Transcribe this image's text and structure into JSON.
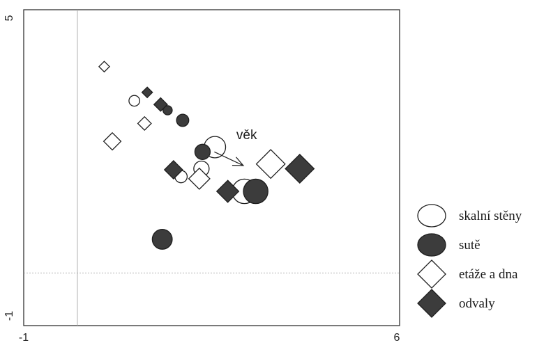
{
  "chart_data": {
    "type": "scatter",
    "xlim": [
      -1,
      6
    ],
    "ylim": [
      -1,
      5
    ],
    "x_ticks": [
      "-1",
      "6"
    ],
    "y_ticks": [
      "5",
      "-1"
    ],
    "reference_lines": {
      "x": 0,
      "y": 0
    },
    "grid": false,
    "legend_placement": "right",
    "fill_color": "#3c3c3c",
    "series": [
      {
        "name": "skalní stěny",
        "marker": "circle-open",
        "points": [
          {
            "x": 1.06,
            "y": 3.27,
            "size": 0.7
          },
          {
            "x": 1.93,
            "y": 1.83,
            "size": 0.8
          },
          {
            "x": 2.31,
            "y": 1.98,
            "size": 1.0
          },
          {
            "x": 2.56,
            "y": 2.39,
            "size": 1.4
          },
          {
            "x": 3.11,
            "y": 1.55,
            "size": 1.6
          }
        ]
      },
      {
        "name": "sutě",
        "marker": "circle-filled",
        "points": [
          {
            "x": 1.68,
            "y": 3.09,
            "size": 0.6
          },
          {
            "x": 1.96,
            "y": 2.9,
            "size": 0.8
          },
          {
            "x": 2.33,
            "y": 2.3,
            "size": 1.0
          },
          {
            "x": 3.32,
            "y": 1.55,
            "size": 1.6
          },
          {
            "x": 1.58,
            "y": 0.64,
            "size": 1.3
          }
        ]
      },
      {
        "name": "etáže a dna",
        "marker": "diamond-open",
        "points": [
          {
            "x": 0.5,
            "y": 3.92,
            "size": 0.55
          },
          {
            "x": 1.25,
            "y": 2.84,
            "size": 0.7
          },
          {
            "x": 0.65,
            "y": 2.5,
            "size": 0.9
          },
          {
            "x": 2.27,
            "y": 1.79,
            "size": 1.1
          },
          {
            "x": 3.6,
            "y": 2.07,
            "size": 1.5
          }
        ]
      },
      {
        "name": "odvaly",
        "marker": "diamond-filled",
        "points": [
          {
            "x": 1.3,
            "y": 3.43,
            "size": 0.55
          },
          {
            "x": 1.55,
            "y": 3.2,
            "size": 0.7
          },
          {
            "x": 1.79,
            "y": 1.96,
            "size": 0.95
          },
          {
            "x": 2.8,
            "y": 1.55,
            "size": 1.15
          },
          {
            "x": 4.14,
            "y": 1.98,
            "size": 1.5
          }
        ]
      }
    ],
    "arrows": [
      {
        "label": "věk",
        "from": [
          2.55,
          2.3
        ],
        "to": [
          3.09,
          2.04
        ]
      }
    ]
  }
}
